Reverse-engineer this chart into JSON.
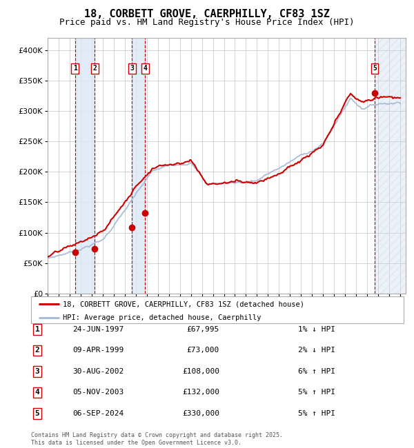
{
  "title": "18, CORBETT GROVE, CAERPHILLY, CF83 1SZ",
  "subtitle": "Price paid vs. HM Land Registry's House Price Index (HPI)",
  "ylim": [
    0,
    420000
  ],
  "yticks": [
    0,
    50000,
    100000,
    150000,
    200000,
    250000,
    300000,
    350000,
    400000
  ],
  "ytick_labels": [
    "£0",
    "£50K",
    "£100K",
    "£150K",
    "£200K",
    "£250K",
    "£300K",
    "£350K",
    "£400K"
  ],
  "xlim_start": 1995.0,
  "xlim_end": 2027.5,
  "sale_dates": [
    1997.48,
    1999.27,
    2002.66,
    2003.84,
    2024.68
  ],
  "sale_prices": [
    67995,
    73000,
    108000,
    132000,
    330000
  ],
  "sale_labels": [
    "1",
    "2",
    "3",
    "4",
    "5"
  ],
  "hpi_line_color": "#aabdd8",
  "price_line_color": "#cc0000",
  "dot_color": "#cc0000",
  "vline_color": "#cc0000",
  "shade_color": "#dce9f5",
  "hatch_color": "#c8d8ea",
  "legend_red_label": "18, CORBETT GROVE, CAERPHILLY, CF83 1SZ (detached house)",
  "legend_blue_label": "HPI: Average price, detached house, Caerphilly",
  "table_entries": [
    {
      "label": "1",
      "date": "24-JUN-1997",
      "price": "£67,995",
      "hpi": "1% ↓ HPI"
    },
    {
      "label": "2",
      "date": "09-APR-1999",
      "price": "£73,000",
      "hpi": "2% ↓ HPI"
    },
    {
      "label": "3",
      "date": "30-AUG-2002",
      "price": "£108,000",
      "hpi": "6% ↑ HPI"
    },
    {
      "label": "4",
      "date": "05-NOV-2003",
      "price": "£132,000",
      "hpi": "5% ↑ HPI"
    },
    {
      "label": "5",
      "date": "06-SEP-2024",
      "price": "£330,000",
      "hpi": "5% ↑ HPI"
    }
  ],
  "footer": "Contains HM Land Registry data © Crown copyright and database right 2025.\nThis data is licensed under the Open Government Licence v3.0.",
  "background_color": "#ffffff",
  "plot_bg_color": "#ffffff",
  "grid_color": "#cccccc",
  "title_fontsize": 11,
  "subtitle_fontsize": 9
}
